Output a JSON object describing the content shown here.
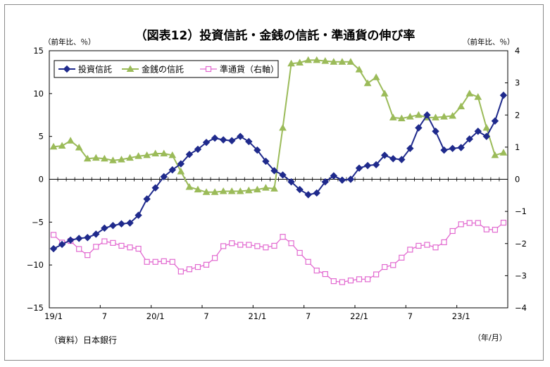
{
  "title": "（図表12）投資信託・金銭の信託・準通貨の伸び率",
  "left_unit": "（前年比、％）",
  "right_unit": "（前年比、％）",
  "source": "（資料）日本銀行",
  "x_unit": "（年/月）",
  "colors": {
    "investment_trust": "#1f2a8c",
    "money_trust": "#9bbb59",
    "quasi_money": "#e26ad0"
  },
  "chart_data": {
    "type": "line",
    "x_tick_labels": [
      "19/1",
      "7",
      "20/1",
      "7",
      "21/1",
      "7",
      "22/1",
      "7",
      "23/1"
    ],
    "x_tick_index": [
      0,
      6,
      12,
      18,
      24,
      30,
      36,
      42,
      48
    ],
    "n_points": 54,
    "ylim_left": [
      -15,
      15
    ],
    "yticks_left": [
      15,
      10,
      5,
      0,
      -5,
      -10,
      -15
    ],
    "ylim_right": [
      -4,
      4
    ],
    "yticks_right": [
      4,
      3,
      2,
      1,
      0,
      -1,
      -2,
      -3,
      -4
    ],
    "legend_position": "top-left",
    "series": [
      {
        "name": "投資信託",
        "axis": "left",
        "marker": "diamond",
        "values": [
          -8.1,
          -7.6,
          -7.1,
          -6.9,
          -6.8,
          -6.4,
          -5.7,
          -5.4,
          -5.2,
          -5.1,
          -4.2,
          -2.3,
          -1.0,
          0.3,
          1.1,
          1.8,
          2.9,
          3.5,
          4.3,
          4.8,
          4.6,
          4.5,
          5.0,
          4.4,
          3.4,
          2.1,
          1.0,
          0.5,
          -0.3,
          -1.2,
          -1.8,
          -1.6,
          -0.3,
          0.4,
          -0.1,
          0.0,
          1.3,
          1.6,
          1.7,
          2.8,
          2.4,
          2.3,
          3.6,
          6.0,
          7.5,
          5.6,
          3.4,
          3.6,
          3.7,
          4.7,
          5.6,
          5.0,
          6.8,
          9.8
        ]
      },
      {
        "name": "金銭の信託",
        "axis": "left",
        "marker": "triangle",
        "values": [
          3.8,
          3.9,
          4.5,
          3.7,
          2.4,
          2.5,
          2.4,
          2.2,
          2.3,
          2.5,
          2.7,
          2.8,
          3.0,
          3.0,
          2.8,
          0.9,
          -0.9,
          -1.2,
          -1.5,
          -1.5,
          -1.4,
          -1.4,
          -1.4,
          -1.3,
          -1.2,
          -1.0,
          -1.1,
          6.0,
          13.5,
          13.6,
          13.9,
          13.9,
          13.8,
          13.7,
          13.7,
          13.7,
          12.8,
          11.2,
          11.9,
          10.0,
          7.2,
          7.1,
          7.3,
          7.5,
          7.2,
          7.2,
          7.3,
          7.4,
          8.5,
          10.0,
          9.6,
          6.0,
          2.8,
          3.1
        ]
      },
      {
        "name": "準通貨（右軸）",
        "axis": "right",
        "marker": "square",
        "values": [
          -1.73,
          -1.97,
          -1.92,
          -2.17,
          -2.36,
          -2.1,
          -1.93,
          -1.98,
          -2.07,
          -2.12,
          -2.16,
          -2.57,
          -2.57,
          -2.55,
          -2.57,
          -2.87,
          -2.8,
          -2.73,
          -2.66,
          -2.45,
          -2.08,
          -1.99,
          -2.04,
          -2.04,
          -2.08,
          -2.12,
          -2.07,
          -1.79,
          -1.99,
          -2.29,
          -2.57,
          -2.84,
          -2.95,
          -3.17,
          -3.2,
          -3.15,
          -3.11,
          -3.11,
          -2.96,
          -2.73,
          -2.67,
          -2.44,
          -2.19,
          -2.07,
          -2.04,
          -2.12,
          -1.96,
          -1.61,
          -1.4,
          -1.36,
          -1.36,
          -1.56,
          -1.57,
          -1.35
        ]
      }
    ]
  }
}
